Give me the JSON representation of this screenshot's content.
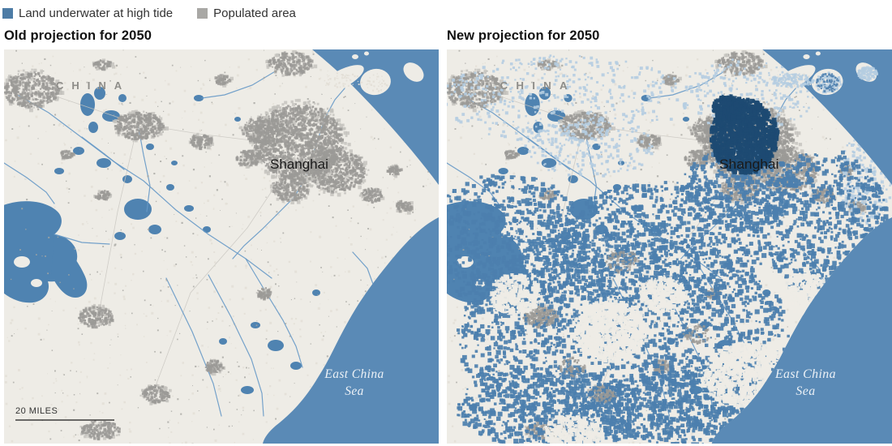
{
  "legend": {
    "items": [
      {
        "id": "underwater",
        "label": "Land underwater at high tide",
        "color": "#4d7ca6"
      },
      {
        "id": "populated",
        "label": "Populated area",
        "color": "#a9a8a5"
      }
    ]
  },
  "panels": [
    {
      "id": "old",
      "title": "Old projection for 2050"
    },
    {
      "id": "new",
      "title": "New projection for 2050"
    }
  ],
  "map_labels": {
    "country": "CHINA",
    "city": "Shanghai",
    "sea_lines": [
      "East China",
      "Sea"
    ],
    "scale": "20 MILES"
  },
  "colors": {
    "land": "#eeece6",
    "land_texture": "#e2dfd6",
    "sea": "#5a8ab6",
    "island": "#eeece6",
    "lake": "#4f83b1",
    "river": "#6699c7",
    "road": "#c9c7c1",
    "urban": "#9b9a96",
    "urban_halo": "#c3c2bd",
    "village": "#a8a7a2",
    "flood": "#4c7fae",
    "flood_dark": "#1e4a72",
    "flood_light": "#b5cde1"
  }
}
